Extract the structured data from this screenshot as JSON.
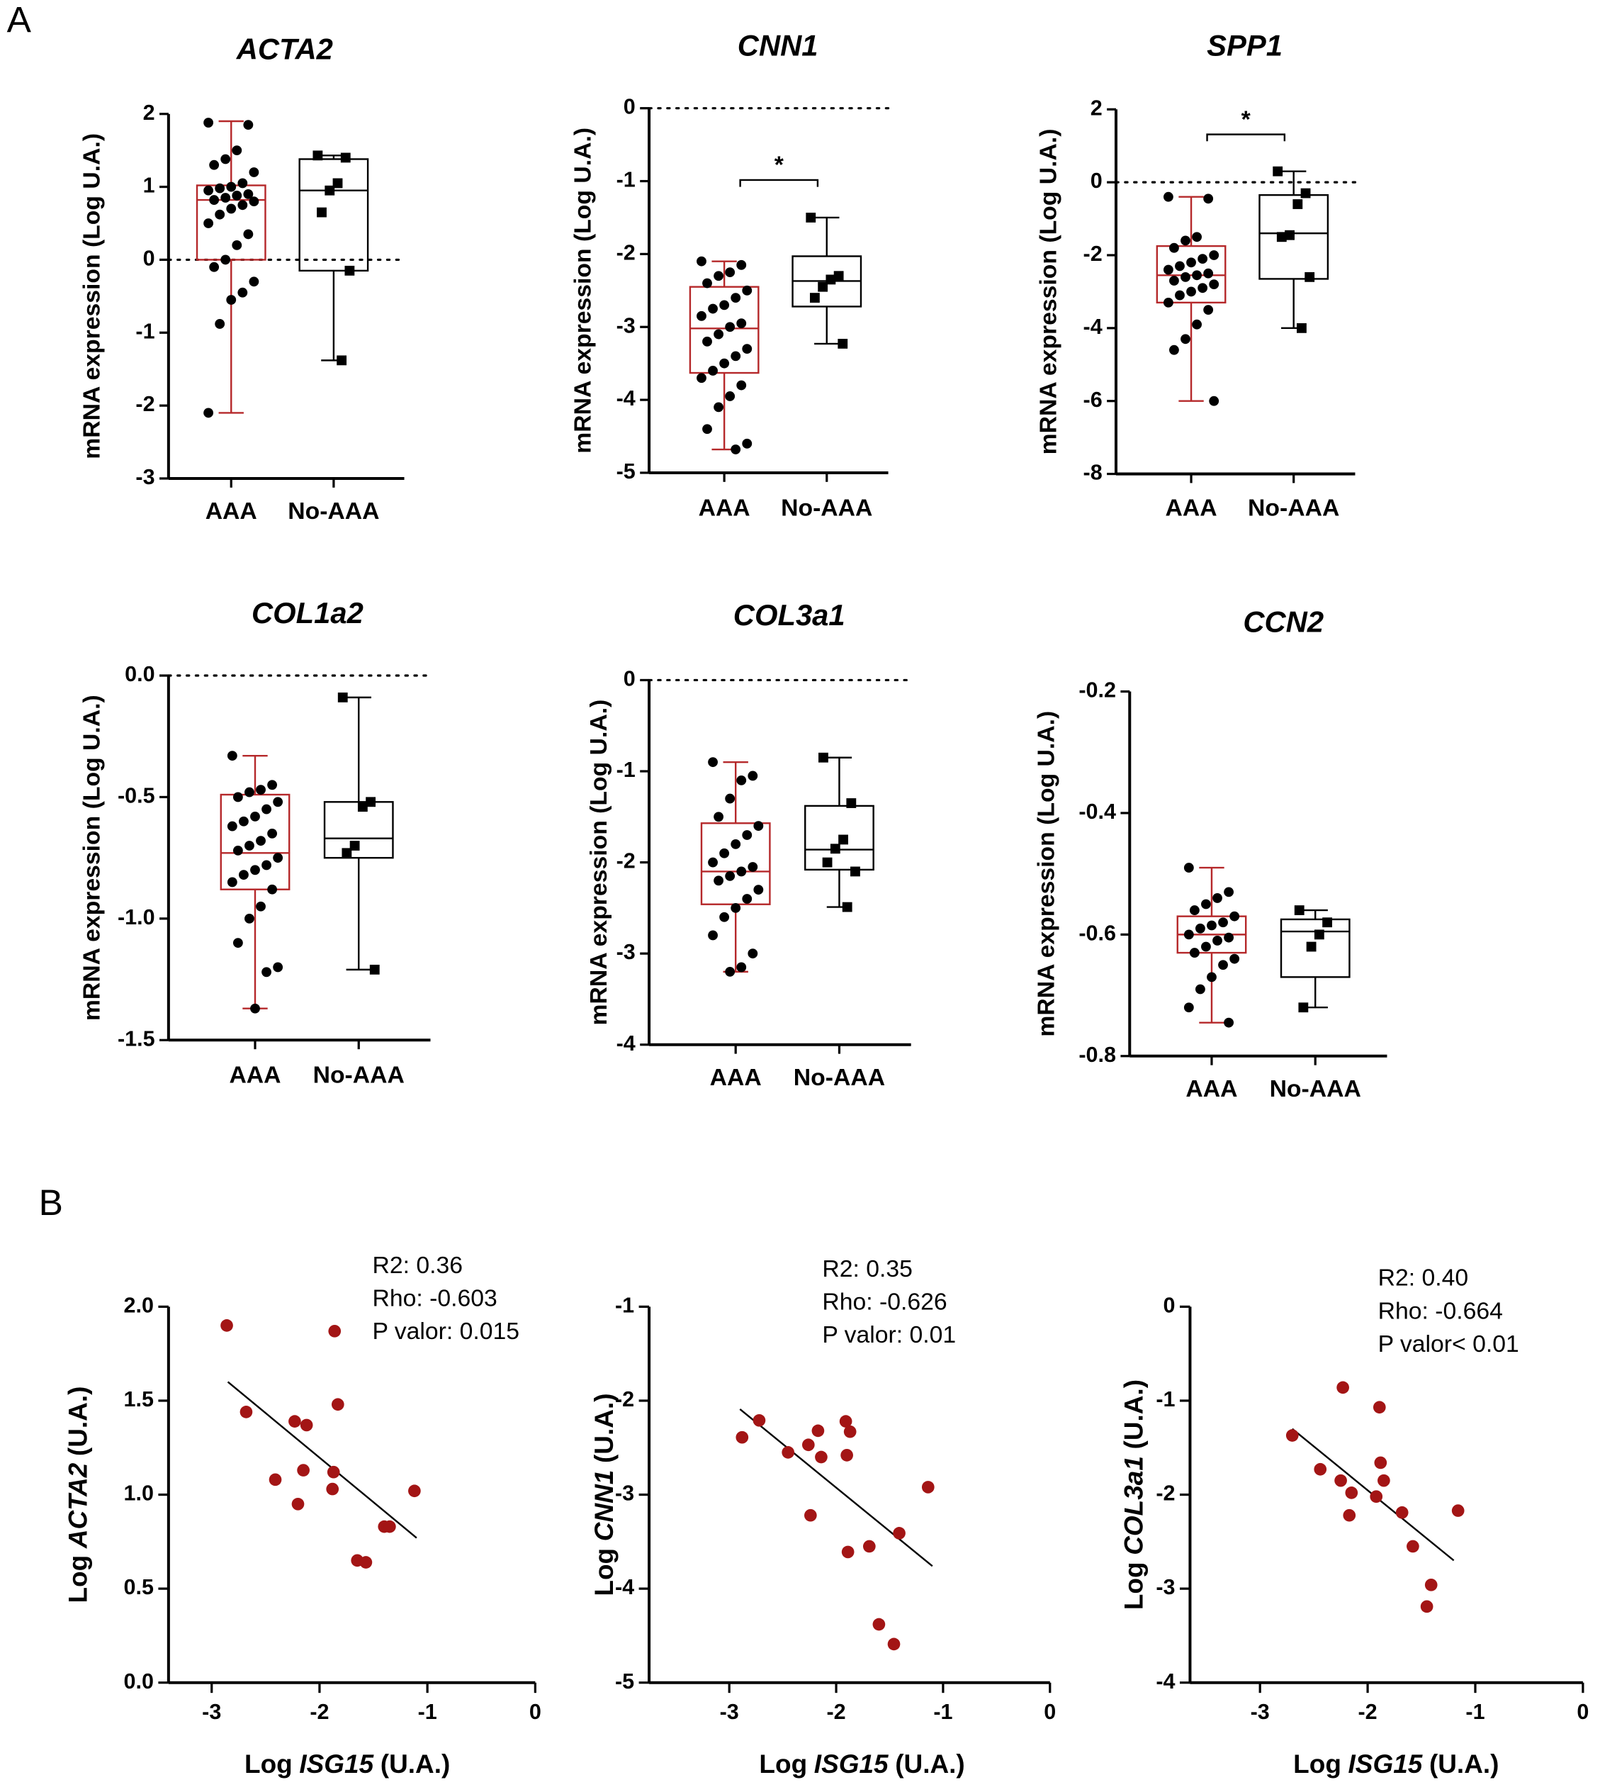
{
  "panels": [
    "A",
    "B"
  ],
  "chart_data": [
    {
      "type": "box",
      "title": "ACTA2",
      "ylabel": "mRNA expression (Log U.A.)",
      "ylim": [
        -3,
        2
      ],
      "yticks": [
        -3,
        -2,
        -1,
        0,
        1,
        2
      ],
      "refline": 0,
      "series": [
        {
          "name": "AAA",
          "color": "#b5282a",
          "marker": "circle",
          "min": -2.1,
          "q1": 0.0,
          "median": 0.82,
          "q3": 1.02,
          "max": 1.9,
          "points": [
            1.88,
            1.85,
            1.5,
            1.38,
            1.3,
            1.2,
            1.05,
            1.0,
            0.98,
            0.95,
            0.9,
            0.88,
            0.85,
            0.82,
            0.8,
            0.75,
            0.7,
            0.62,
            0.5,
            0.35,
            0.2,
            0.0,
            -0.1,
            -0.3,
            -0.45,
            -0.55,
            -0.88,
            -2.1
          ]
        },
        {
          "name": "No-AAA",
          "color": "#000000",
          "marker": "square",
          "min": -1.38,
          "q1": -0.15,
          "median": 0.95,
          "q3": 1.38,
          "max": 1.43,
          "points": [
            1.43,
            1.4,
            1.05,
            0.95,
            0.65,
            -0.15,
            -1.38
          ]
        }
      ]
    },
    {
      "type": "box",
      "title": "CNN1",
      "ylabel": "mRNA expression (Log U.A.)",
      "ylim": [
        -5,
        0
      ],
      "yticks": [
        -5,
        -4,
        -3,
        -2,
        -1,
        0
      ],
      "refline": 0,
      "significance": "*",
      "series": [
        {
          "name": "AAA",
          "color": "#b5282a",
          "marker": "circle",
          "min": -4.68,
          "q1": -3.63,
          "median": -3.02,
          "q3": -2.45,
          "max": -2.1,
          "points": [
            -2.1,
            -2.15,
            -2.25,
            -2.3,
            -2.4,
            -2.5,
            -2.6,
            -2.7,
            -2.75,
            -2.85,
            -2.95,
            -3.0,
            -3.1,
            -3.2,
            -3.3,
            -3.4,
            -3.5,
            -3.6,
            -3.7,
            -3.8,
            -3.95,
            -4.1,
            -4.4,
            -4.6,
            -4.68
          ]
        },
        {
          "name": "No-AAA",
          "color": "#000000",
          "marker": "square",
          "min": -3.23,
          "q1": -2.72,
          "median": -2.37,
          "q3": -2.03,
          "max": -1.5,
          "points": [
            -1.5,
            -2.3,
            -2.35,
            -2.45,
            -2.6,
            -3.23
          ]
        }
      ]
    },
    {
      "type": "box",
      "title": "SPP1",
      "ylabel": "mRNA expression (Log U.A.)",
      "ylim": [
        -8,
        2
      ],
      "yticks": [
        -8,
        -6,
        -4,
        -2,
        0,
        2
      ],
      "refline": 0,
      "significance": "*",
      "series": [
        {
          "name": "AAA",
          "color": "#b5282a",
          "marker": "circle",
          "min": -6.0,
          "q1": -3.3,
          "median": -2.55,
          "q3": -1.75,
          "max": -0.4,
          "points": [
            -0.4,
            -0.45,
            -1.5,
            -1.6,
            -1.8,
            -2.0,
            -2.1,
            -2.2,
            -2.3,
            -2.4,
            -2.5,
            -2.55,
            -2.6,
            -2.7,
            -2.8,
            -2.9,
            -3.0,
            -3.1,
            -3.3,
            -3.5,
            -3.9,
            -4.3,
            -4.6,
            -6.0
          ]
        },
        {
          "name": "No-AAA",
          "color": "#000000",
          "marker": "square",
          "min": -4.0,
          "q1": -2.65,
          "median": -1.4,
          "q3": -0.35,
          "max": 0.3,
          "points": [
            0.3,
            -0.3,
            -0.6,
            -1.45,
            -1.5,
            -2.6,
            -4.0
          ]
        }
      ]
    },
    {
      "type": "box",
      "title": "COL1a2",
      "ylabel": "mRNA expression (Log U.A.)",
      "ylim": [
        -1.5,
        0
      ],
      "yticks": [
        {
          "value": -1.5,
          "label": "-1.5"
        },
        {
          "value": -1,
          "label": "-1.0"
        },
        {
          "value": -0.5,
          "label": "-0.5"
        },
        {
          "value": 0,
          "label": "0.0"
        }
      ],
      "refline": 0,
      "series": [
        {
          "name": "AAA",
          "color": "#b5282a",
          "marker": "circle",
          "min": -1.37,
          "q1": -0.88,
          "median": -0.73,
          "q3": -0.49,
          "max": -0.33,
          "points": [
            -0.33,
            -0.45,
            -0.47,
            -0.48,
            -0.5,
            -0.52,
            -0.55,
            -0.58,
            -0.6,
            -0.62,
            -0.65,
            -0.68,
            -0.7,
            -0.72,
            -0.75,
            -0.78,
            -0.8,
            -0.82,
            -0.85,
            -0.88,
            -0.95,
            -1.0,
            -1.1,
            -1.2,
            -1.22,
            -1.37
          ]
        },
        {
          "name": "No-AAA",
          "color": "#000000",
          "marker": "square",
          "min": -1.21,
          "q1": -0.75,
          "median": -0.67,
          "q3": -0.52,
          "max": -0.09,
          "points": [
            -0.09,
            -0.52,
            -0.54,
            -0.7,
            -0.73,
            -1.21
          ]
        }
      ]
    },
    {
      "type": "box",
      "title": "COL3a1",
      "ylabel": "mRNA expression (Log U.A.)",
      "ylim": [
        -4,
        0
      ],
      "yticks": [
        -4,
        -3,
        -2,
        -1,
        0
      ],
      "refline": 0,
      "series": [
        {
          "name": "AAA",
          "color": "#b5282a",
          "marker": "circle",
          "min": -3.2,
          "q1": -2.46,
          "median": -2.1,
          "q3": -1.57,
          "max": -0.9,
          "points": [
            -0.9,
            -1.05,
            -1.1,
            -1.3,
            -1.5,
            -1.6,
            -1.7,
            -1.8,
            -1.9,
            -2.0,
            -2.05,
            -2.1,
            -2.15,
            -2.2,
            -2.3,
            -2.4,
            -2.5,
            -2.6,
            -2.8,
            -3.0,
            -3.15,
            -3.2
          ]
        },
        {
          "name": "No-AAA",
          "color": "#000000",
          "marker": "square",
          "min": -2.49,
          "q1": -2.08,
          "median": -1.86,
          "q3": -1.38,
          "max": -0.85,
          "points": [
            -0.85,
            -1.35,
            -1.75,
            -1.85,
            -2.0,
            -2.1,
            -2.49
          ]
        }
      ]
    },
    {
      "type": "box",
      "title": "CCN2",
      "ylabel": "mRNA expression (Log U.A.)",
      "ylim": [
        -0.8,
        -0.2
      ],
      "yticks": [
        -0.8,
        -0.6,
        -0.4,
        -0.2
      ],
      "series": [
        {
          "name": "AAA",
          "color": "#b5282a",
          "marker": "circle",
          "min": -0.745,
          "q1": -0.63,
          "median": -0.6,
          "q3": -0.57,
          "max": -0.49,
          "points": [
            -0.49,
            -0.53,
            -0.54,
            -0.55,
            -0.56,
            -0.57,
            -0.58,
            -0.585,
            -0.59,
            -0.6,
            -0.605,
            -0.61,
            -0.62,
            -0.63,
            -0.64,
            -0.65,
            -0.67,
            -0.69,
            -0.72,
            -0.745
          ]
        },
        {
          "name": "No-AAA",
          "color": "#000000",
          "marker": "square",
          "min": -0.72,
          "q1": -0.67,
          "median": -0.595,
          "q3": -0.575,
          "max": -0.56,
          "points": [
            -0.56,
            -0.58,
            -0.6,
            -0.62,
            -0.72
          ]
        }
      ]
    },
    {
      "type": "scatter",
      "ylabel": [
        "Log",
        "ACTA2",
        "(U.A.)"
      ],
      "xlabel": [
        "Log",
        "ISG15",
        "(U.A.)"
      ],
      "color": "#a31515",
      "xlim": [
        -3.4,
        0
      ],
      "xticks": [
        -3,
        -2,
        -1,
        0
      ],
      "ylim": [
        0,
        2
      ],
      "yticks": [
        {
          "value": 0,
          "label": "0.0"
        },
        0.5,
        {
          "value": 1,
          "label": "1.0"
        },
        1.5,
        {
          "value": 2,
          "label": "2.0"
        }
      ],
      "stats": [
        "R2: 0.36",
        "Rho: -0.603",
        "P valor: 0.015"
      ],
      "x": [
        -2.86,
        -2.68,
        -2.41,
        -2.23,
        -2.2,
        -2.12,
        -2.15,
        -1.86,
        -1.83,
        -1.87,
        -1.88,
        -1.4,
        -1.35,
        -1.65,
        -1.57,
        -1.12
      ],
      "y": [
        1.9,
        1.44,
        1.08,
        1.39,
        0.95,
        1.37,
        1.13,
        1.87,
        1.48,
        1.12,
        1.03,
        0.83,
        0.83,
        0.65,
        0.64,
        1.02
      ],
      "fit": {
        "x": [
          -2.85,
          -1.1
        ],
        "y": [
          1.6,
          0.77
        ]
      }
    },
    {
      "type": "scatter",
      "ylabel": [
        "Log",
        "CNN1",
        "(U.A.)"
      ],
      "xlabel": [
        "Log",
        "ISG15",
        "(U.A.)"
      ],
      "color": "#a31515",
      "xlim": [
        -3.75,
        0
      ],
      "xticks": [
        -3,
        -2,
        -1,
        0
      ],
      "ylim": [
        -5,
        -1
      ],
      "yticks": [
        -5,
        -4,
        -3,
        -2,
        -1
      ],
      "stats": [
        "R2: 0.35",
        "Rho: -0.626",
        "P valor: 0.01"
      ],
      "x": [
        -2.88,
        -2.72,
        -2.45,
        -2.26,
        -2.17,
        -2.14,
        -2.24,
        -1.91,
        -1.87,
        -1.9,
        -1.89,
        -1.69,
        -1.41,
        -1.6,
        -1.46,
        -1.14
      ],
      "y": [
        -2.39,
        -2.21,
        -2.55,
        -2.47,
        -2.32,
        -2.6,
        -3.22,
        -2.22,
        -2.33,
        -2.58,
        -3.61,
        -3.55,
        -3.41,
        -4.38,
        -4.59,
        -2.92
      ],
      "fit": {
        "x": [
          -2.9,
          -1.1
        ],
        "y": [
          -2.09,
          -3.76
        ]
      }
    },
    {
      "type": "scatter",
      "ylabel": [
        "Log",
        "COL3a1",
        "(U.A.)"
      ],
      "xlabel": [
        "Log",
        "ISG15",
        "(U.A.)"
      ],
      "color": "#a31515",
      "xlim": [
        -3.65,
        0
      ],
      "xticks": [
        -3,
        -2,
        -1,
        0
      ],
      "ylim": [
        -4,
        0
      ],
      "yticks": [
        -4,
        -3,
        -2,
        -1,
        0
      ],
      "stats": [
        "R2: 0.40",
        "Rho: -0.664",
        "P valor< 0.01"
      ],
      "x": [
        -2.7,
        -2.44,
        -2.25,
        -2.23,
        -2.15,
        -2.17,
        -1.89,
        -1.88,
        -1.85,
        -1.92,
        -1.68,
        -1.58,
        -1.41,
        -1.45,
        -1.16
      ],
      "y": [
        -1.37,
        -1.73,
        -1.85,
        -0.86,
        -1.98,
        -2.22,
        -1.07,
        -1.66,
        -1.85,
        -2.02,
        -2.19,
        -2.55,
        -2.96,
        -3.19,
        -2.17
      ],
      "fit": {
        "x": [
          -2.7,
          -1.2
        ],
        "y": [
          -1.3,
          -2.7
        ]
      }
    }
  ]
}
